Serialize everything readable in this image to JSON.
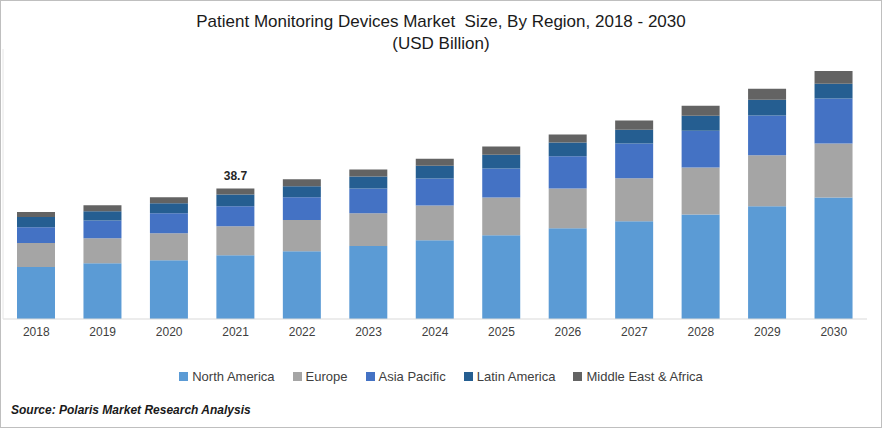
{
  "chart_data": {
    "type": "bar",
    "title": "Patient Monitoring Devices Market  Size, By Region, 2018 - 2030",
    "subtitle": "(USD Billion)",
    "source": "Source: Polaris Market Research Analysis",
    "categories": [
      "2018",
      "2019",
      "2020",
      "2021",
      "2022",
      "2023",
      "2024",
      "2025",
      "2026",
      "2027",
      "2028",
      "2029",
      "2030"
    ],
    "series": [
      {
        "name": "North America",
        "color": "#5b9bd5",
        "values": [
          15.4,
          16.5,
          17.4,
          18.9,
          20.1,
          21.6,
          23.3,
          24.8,
          26.9,
          29.0,
          31.0,
          33.4,
          36.0
        ]
      },
      {
        "name": "Europe",
        "color": "#a5a5a5",
        "values": [
          7.1,
          7.4,
          8.0,
          8.6,
          9.2,
          9.7,
          10.3,
          11.2,
          11.8,
          12.7,
          13.9,
          15.1,
          16.0
        ]
      },
      {
        "name": "Asia Pacific",
        "color": "#4472c4",
        "values": [
          4.7,
          5.3,
          5.9,
          5.9,
          6.8,
          7.4,
          8.0,
          8.6,
          9.5,
          10.3,
          10.9,
          11.8,
          13.3
        ]
      },
      {
        "name": "Latin America",
        "color": "#255e91",
        "values": [
          3.0,
          2.7,
          3.0,
          3.5,
          3.2,
          3.5,
          3.8,
          4.1,
          4.1,
          4.1,
          4.4,
          4.7,
          4.4
        ]
      },
      {
        "name": "Middle East & Africa",
        "color": "#636363",
        "values": [
          1.5,
          1.8,
          1.8,
          1.8,
          2.1,
          2.1,
          2.1,
          2.4,
          2.4,
          2.7,
          3.0,
          3.2,
          3.8
        ]
      }
    ],
    "stacked": true,
    "grid": false,
    "tick_labels": "x",
    "ylim": [
      0,
      80
    ],
    "annotations": [
      {
        "category": "2021",
        "text": "38.7"
      }
    ]
  }
}
